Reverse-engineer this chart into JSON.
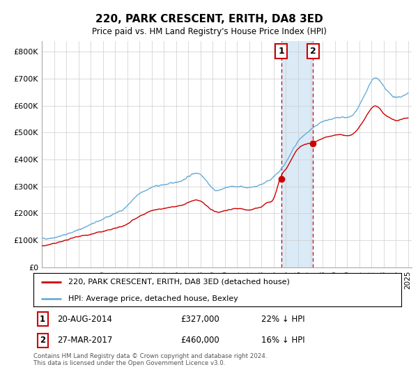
{
  "title": "220, PARK CRESCENT, ERITH, DA8 3ED",
  "subtitle": "Price paid vs. HM Land Registry's House Price Index (HPI)",
  "ylabel_ticks": [
    "£0",
    "£100K",
    "£200K",
    "£300K",
    "£400K",
    "£500K",
    "£600K",
    "£700K",
    "£800K"
  ],
  "ytick_values": [
    0,
    100000,
    200000,
    300000,
    400000,
    500000,
    600000,
    700000,
    800000
  ],
  "ylim": [
    0,
    840000
  ],
  "xlim_start": 1995.0,
  "xlim_end": 2025.3,
  "transaction1_date": 2014.62,
  "transaction1_price": 327000,
  "transaction2_date": 2017.22,
  "transaction2_price": 460000,
  "legend_entry1": "220, PARK CRESCENT, ERITH, DA8 3ED (detached house)",
  "legend_entry2": "HPI: Average price, detached house, Bexley",
  "footer": "Contains HM Land Registry data © Crown copyright and database right 2024.\nThis data is licensed under the Open Government Licence v3.0.",
  "line_red_color": "#cc0000",
  "line_blue_color": "#6baed6",
  "shade_color": "#daeaf7",
  "grid_color": "#cccccc",
  "background_color": "#ffffff",
  "hpi_years": [
    1995.0,
    1995.5,
    1996.0,
    1996.5,
    1997.0,
    1997.5,
    1998.0,
    1998.5,
    1999.0,
    1999.5,
    2000.0,
    2000.5,
    2001.0,
    2001.5,
    2002.0,
    2002.5,
    2003.0,
    2003.5,
    2004.0,
    2004.5,
    2005.0,
    2005.5,
    2006.0,
    2006.5,
    2007.0,
    2007.5,
    2008.0,
    2008.5,
    2009.0,
    2009.5,
    2010.0,
    2010.5,
    2011.0,
    2011.5,
    2012.0,
    2012.5,
    2013.0,
    2013.5,
    2014.0,
    2014.5,
    2015.0,
    2015.5,
    2016.0,
    2016.5,
    2017.0,
    2017.5,
    2018.0,
    2018.5,
    2019.0,
    2019.5,
    2020.0,
    2020.5,
    2021.0,
    2021.5,
    2022.0,
    2022.5,
    2023.0,
    2023.5,
    2024.0,
    2024.5,
    2025.0
  ],
  "hpi_values": [
    106000,
    107000,
    110000,
    115000,
    122000,
    130000,
    138000,
    148000,
    158000,
    168000,
    178000,
    188000,
    200000,
    210000,
    228000,
    252000,
    272000,
    285000,
    296000,
    302000,
    306000,
    310000,
    316000,
    322000,
    336000,
    348000,
    345000,
    320000,
    292000,
    285000,
    294000,
    298000,
    300000,
    298000,
    296000,
    300000,
    308000,
    320000,
    335000,
    358000,
    390000,
    430000,
    468000,
    490000,
    508000,
    525000,
    540000,
    548000,
    552000,
    558000,
    555000,
    565000,
    600000,
    645000,
    690000,
    700000,
    670000,
    645000,
    630000,
    635000,
    645000
  ],
  "price_years": [
    1995.0,
    1995.5,
    1996.0,
    1996.5,
    1997.0,
    1997.5,
    1998.0,
    1998.5,
    1999.0,
    1999.5,
    2000.0,
    2000.5,
    2001.0,
    2001.5,
    2002.0,
    2002.5,
    2003.0,
    2003.5,
    2004.0,
    2004.5,
    2005.0,
    2005.5,
    2006.0,
    2006.5,
    2007.0,
    2007.5,
    2008.0,
    2008.5,
    2009.0,
    2009.5,
    2010.0,
    2010.5,
    2011.0,
    2011.5,
    2012.0,
    2012.5,
    2013.0,
    2013.5,
    2014.0,
    2014.5,
    2015.0,
    2015.5,
    2016.0,
    2016.5,
    2017.0,
    2017.5,
    2018.0,
    2018.5,
    2019.0,
    2019.5,
    2020.0,
    2020.5,
    2021.0,
    2021.5,
    2022.0,
    2022.5,
    2023.0,
    2023.5,
    2024.0,
    2024.5,
    2025.0
  ],
  "price_values": [
    80000,
    82000,
    88000,
    94000,
    100000,
    108000,
    114000,
    118000,
    122000,
    128000,
    132000,
    138000,
    144000,
    150000,
    160000,
    175000,
    188000,
    200000,
    210000,
    215000,
    218000,
    222000,
    225000,
    230000,
    240000,
    248000,
    245000,
    228000,
    210000,
    205000,
    210000,
    215000,
    218000,
    215000,
    212000,
    218000,
    225000,
    240000,
    255000,
    327000,
    365000,
    405000,
    440000,
    455000,
    460000,
    468000,
    478000,
    485000,
    490000,
    492000,
    488000,
    495000,
    520000,
    555000,
    590000,
    595000,
    570000,
    555000,
    545000,
    550000,
    555000
  ]
}
